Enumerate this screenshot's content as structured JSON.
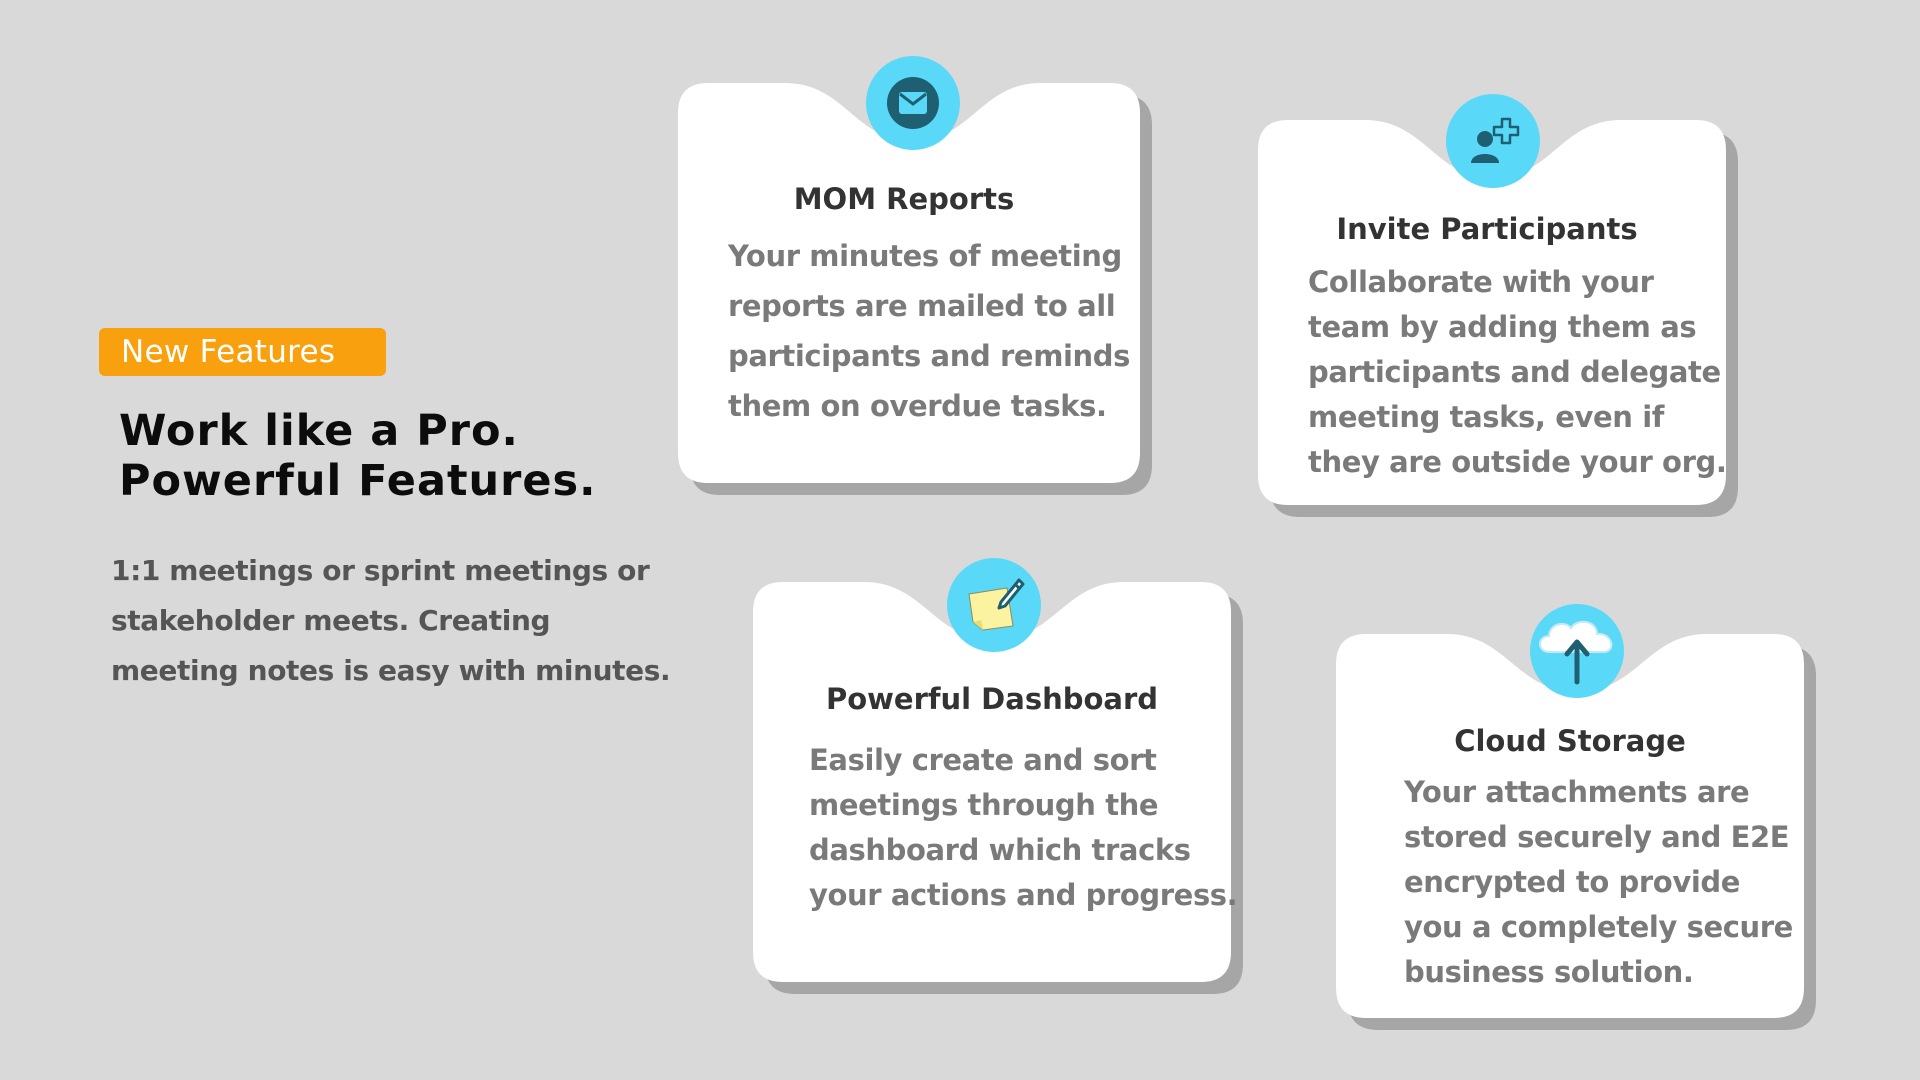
{
  "intro": {
    "badge": "New Features",
    "headline_line1": "Work like a Pro.",
    "headline_line2": "Powerful Features.",
    "description": "1:1 meetings or sprint meetings or stakeholder meets. Creating meeting notes is easy with minutes."
  },
  "cards": [
    {
      "icon": "envelope-icon",
      "title": "MOM Reports",
      "lines": [
        "Your minutes of meeting",
        "reports are mailed to all",
        "participants and reminds",
        "them on overdue tasks."
      ]
    },
    {
      "icon": "add-user-icon",
      "title": "Invite Participants",
      "lines": [
        "Collaborate with your",
        "team by adding them as",
        "participants and delegate",
        "meeting tasks, even if",
        "they are outside your org."
      ]
    },
    {
      "icon": "sticky-note-icon",
      "title": "Powerful Dashboard",
      "lines": [
        "Easily create and sort",
        "meetings through the",
        "dashboard which tracks",
        "your actions and progress."
      ]
    },
    {
      "icon": "cloud-upload-icon",
      "title": "Cloud Storage",
      "lines": [
        "Your attachments are",
        "stored securely and E2E",
        "encrypted to provide",
        "you a completely secure",
        "business solution."
      ]
    }
  ],
  "colors": {
    "background": "#d9d9d9",
    "badge": "#f9a00e",
    "icon_circle": "#5ad8f8",
    "icon_dark": "#1f5f72"
  }
}
